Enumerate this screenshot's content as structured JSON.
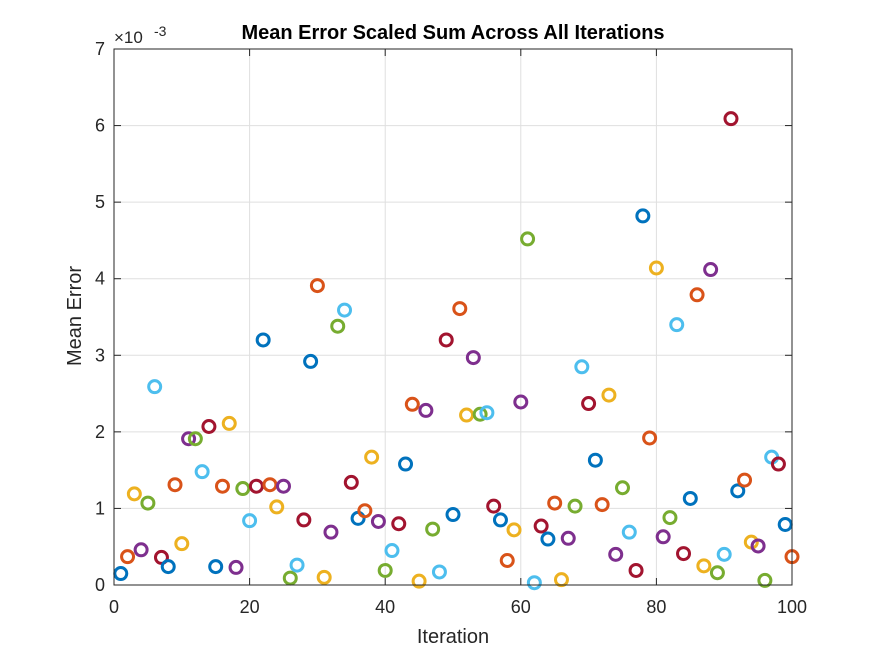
{
  "chart_data": {
    "type": "scatter",
    "title": "Mean Error Scaled Sum Across All Iterations",
    "xlabel": "Iteration",
    "ylabel": "Mean Error",
    "y_exponent_label": "×10",
    "y_exponent_power": "-3",
    "xlim": [
      0,
      100
    ],
    "ylim": [
      0,
      7
    ],
    "xticks": [
      0,
      20,
      40,
      60,
      80,
      100
    ],
    "yticks": [
      0,
      1,
      2,
      3,
      4,
      5,
      6,
      7
    ],
    "xtick_labels": [
      "0",
      "20",
      "40",
      "60",
      "80",
      "100"
    ],
    "ytick_labels": [
      "0",
      "1",
      "2",
      "3",
      "4",
      "5",
      "6",
      "7"
    ],
    "grid": true,
    "marker": "open-circle",
    "color_cycle": [
      "#0072BD",
      "#D95319",
      "#EDB120",
      "#7E2F8E",
      "#77AC30",
      "#4DBEEE",
      "#A2142F"
    ],
    "x": [
      1,
      2,
      3,
      4,
      5,
      6,
      7,
      8,
      9,
      10,
      11,
      12,
      13,
      14,
      15,
      16,
      17,
      18,
      19,
      20,
      21,
      22,
      23,
      24,
      25,
      26,
      27,
      28,
      29,
      30,
      31,
      32,
      33,
      34,
      35,
      36,
      37,
      38,
      39,
      40,
      41,
      42,
      43,
      44,
      45,
      46,
      47,
      48,
      49,
      50,
      51,
      52,
      53,
      54,
      55,
      56,
      57,
      58,
      59,
      60,
      61,
      62,
      63,
      64,
      65,
      66,
      67,
      68,
      69,
      70,
      71,
      72,
      73,
      74,
      75,
      76,
      77,
      78,
      79,
      80,
      81,
      82,
      83,
      84,
      85,
      86,
      87,
      88,
      89,
      90,
      91,
      92,
      93,
      94,
      95,
      96,
      97,
      98,
      99,
      100
    ],
    "y": [
      0.15,
      0.37,
      1.19,
      0.46,
      1.07,
      2.59,
      0.36,
      0.24,
      1.31,
      0.54,
      1.91,
      1.91,
      1.48,
      2.07,
      0.24,
      1.29,
      2.11,
      0.23,
      1.26,
      0.84,
      1.29,
      3.2,
      1.31,
      1.02,
      1.29,
      0.09,
      0.26,
      0.85,
      2.92,
      3.91,
      0.1,
      0.69,
      3.38,
      3.59,
      1.34,
      0.87,
      0.97,
      1.67,
      0.83,
      0.19,
      0.45,
      0.8,
      1.58,
      2.36,
      0.05,
      2.28,
      0.73,
      0.17,
      3.2,
      0.92,
      3.61,
      2.22,
      2.97,
      2.23,
      2.25,
      1.03,
      0.85,
      0.32,
      0.72,
      2.39,
      4.52,
      0.03,
      0.77,
      0.6,
      1.07,
      0.07,
      0.61,
      1.03,
      2.85,
      2.37,
      1.63,
      1.05,
      2.48,
      0.4,
      1.27,
      0.69,
      0.19,
      4.82,
      1.92,
      4.14,
      0.63,
      0.88,
      3.4,
      0.41,
      1.13,
      3.79,
      0.25,
      4.12,
      0.16,
      0.4,
      6.09,
      1.23,
      1.37,
      0.56,
      0.51,
      0.06,
      1.67,
      1.58,
      0.79,
      0.37
    ],
    "y_unit_scale": 0.001
  }
}
